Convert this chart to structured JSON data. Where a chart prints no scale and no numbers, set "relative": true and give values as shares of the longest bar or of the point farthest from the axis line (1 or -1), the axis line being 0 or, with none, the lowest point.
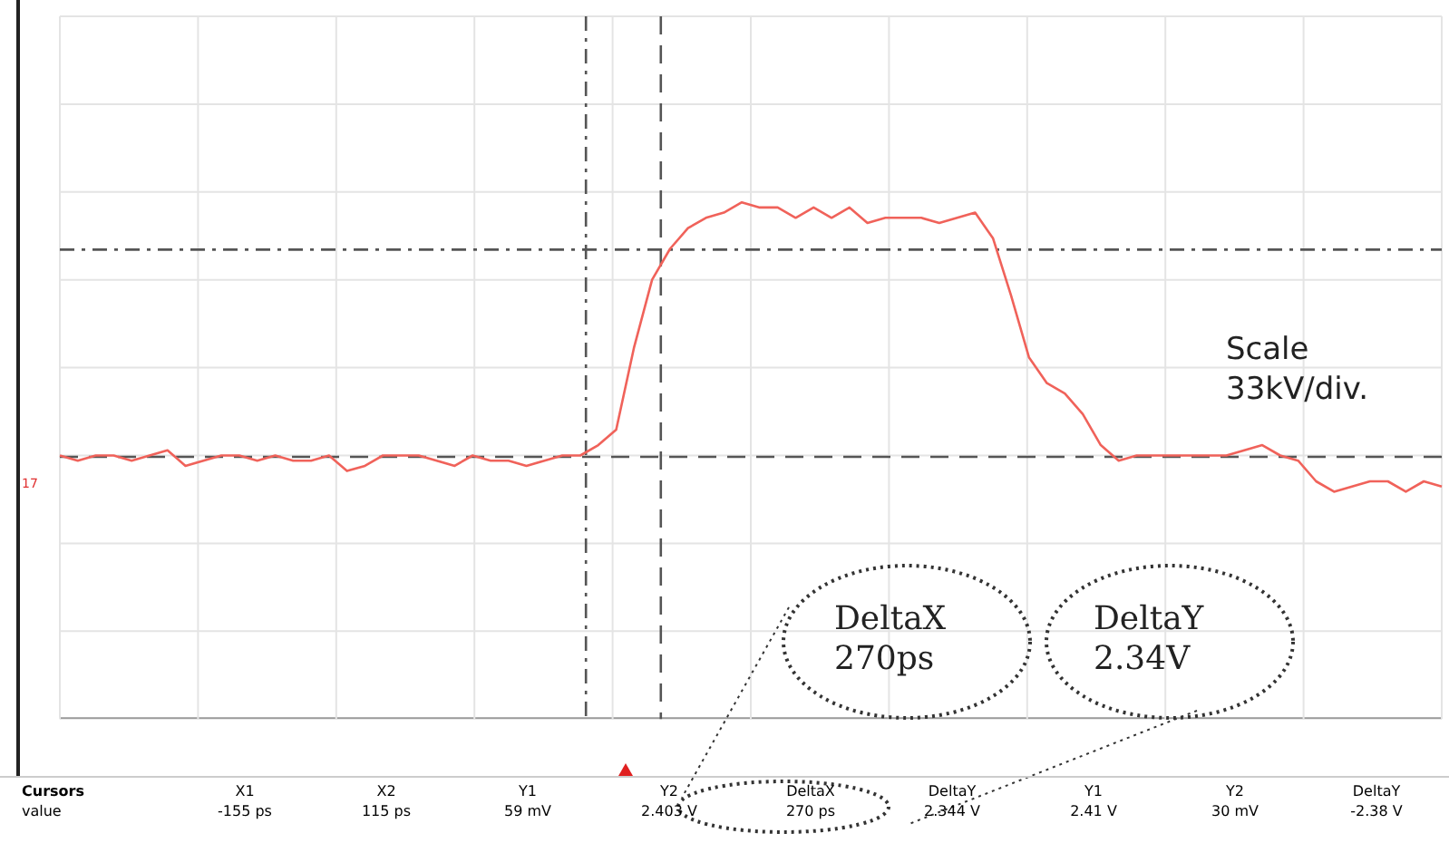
{
  "chart_data": {
    "type": "line",
    "relative": true,
    "grid": true,
    "legend": false,
    "marker": "none",
    "line_style": "solid",
    "categories": [
      null,
      null,
      null,
      null,
      null,
      null,
      null,
      null,
      null,
      null,
      null,
      null,
      null,
      null,
      null,
      null,
      null,
      null,
      null,
      null,
      null,
      null,
      null,
      null,
      null,
      null,
      null,
      null,
      null,
      null,
      null,
      null,
      null,
      null,
      null,
      null,
      null,
      null,
      null,
      null,
      null,
      null,
      null,
      null,
      null,
      null,
      null,
      null,
      null,
      null,
      null,
      null,
      null,
      null,
      null,
      null,
      null,
      null,
      null,
      null,
      null,
      null,
      null,
      null,
      null,
      null,
      null,
      null,
      null,
      null,
      null,
      null,
      null,
      null,
      null,
      null,
      null,
      null
    ],
    "series": [
      {
        "color": "#f0625a",
        "values": [
          0.51,
          0.5,
          0.51,
          0.51,
          0.5,
          0.51,
          0.52,
          0.49,
          0.5,
          0.51,
          0.51,
          0.5,
          0.51,
          0.5,
          0.5,
          0.51,
          0.48,
          0.49,
          0.51,
          0.51,
          0.51,
          0.5,
          0.49,
          0.51,
          0.5,
          0.5,
          0.49,
          0.5,
          0.51,
          0.51,
          0.53,
          0.56,
          0.72,
          0.85,
          0.91,
          0.95,
          0.97,
          0.98,
          1,
          0.99,
          0.99,
          0.97,
          0.99,
          0.97,
          0.99,
          0.96,
          0.97,
          0.97,
          0.97,
          0.96,
          0.97,
          0.98,
          0.93,
          0.82,
          0.7,
          0.65,
          0.63,
          0.59,
          0.53,
          0.5,
          0.51,
          0.51,
          0.51,
          0.51,
          0.51,
          0.51,
          0.52,
          0.53,
          0.51,
          0.5,
          0.46,
          0.44,
          0.45,
          0.46,
          0.46,
          0.44,
          0.46,
          0.45
        ]
      }
    ],
    "annotations": [
      "Scale 33kV/div.",
      "DeltaX 270ps",
      "DeltaY 2.34V",
      "17",
      "Cursors",
      "value",
      "X1",
      "-155 ps",
      "X2",
      "115 ps",
      "Y1",
      "59 mV",
      "Y2",
      "2.403 V",
      "DeltaX",
      "270 ps",
      "DeltaY",
      "2.344 V",
      "Y1",
      "2.41 V",
      "Y2",
      "30 mV",
      "DeltaY",
      "-2.38 V"
    ]
  }
}
